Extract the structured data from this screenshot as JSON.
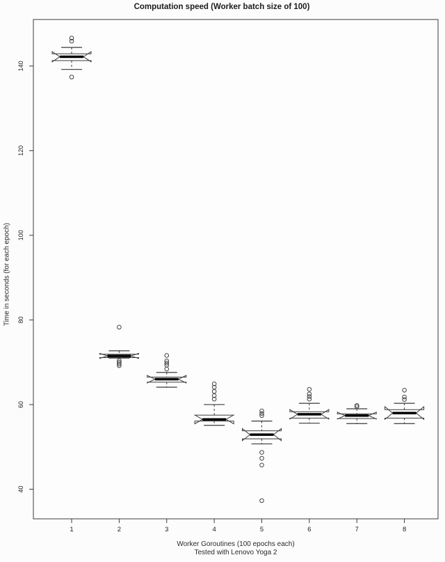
{
  "title": "Computation speed (Worker batch size of 100)",
  "x_axis": {
    "label_line1": "Worker Goroutines (100 epochs each)",
    "label_line2": "Tested with Lenovo Yoga 2",
    "ticks": [
      "1",
      "2",
      "3",
      "4",
      "5",
      "6",
      "7",
      "8"
    ]
  },
  "y_axis": {
    "label": "Time in seconds (for each epoch)",
    "ticks": [
      40,
      60,
      80,
      100,
      120,
      140
    ]
  },
  "colors": {
    "background": "#fcfcfc",
    "plot_background": "#fdfdfd",
    "stroke": "#3a3a3a",
    "median": "#000000",
    "box_fill": "#ffffff",
    "text": "#1c1c1c"
  },
  "chart_data": {
    "type": "boxplot",
    "notched": true,
    "title": "Computation speed (Worker batch size of 100)",
    "xlabel": "Worker Goroutines (100 epochs each) — Tested with Lenovo Yoga 2",
    "ylabel": "Time in seconds (for each epoch)",
    "categories": [
      1,
      2,
      3,
      4,
      5,
      6,
      7,
      8
    ],
    "ylim": [
      33,
      151
    ],
    "grid": false,
    "legend": false,
    "boxes": [
      {
        "x": 1,
        "low": 139.2,
        "q1": 141.3,
        "median": 142.2,
        "q3": 142.9,
        "high": 144.4,
        "outliers": [
          146.6,
          145.9,
          137.4
        ]
      },
      {
        "x": 2,
        "low": 71.0,
        "q1": 71.1,
        "median": 71.5,
        "q3": 71.9,
        "high": 72.7,
        "outliers": [
          78.3,
          70.4,
          70.0,
          69.6,
          69.2
        ]
      },
      {
        "x": 3,
        "low": 64.1,
        "q1": 65.3,
        "median": 66.0,
        "q3": 66.5,
        "high": 67.6,
        "outliers": [
          71.6,
          70.3,
          69.8,
          69.3,
          68.4
        ]
      },
      {
        "x": 4,
        "low": 55.1,
        "q1": 56.1,
        "median": 56.5,
        "q3": 57.5,
        "high": 60.0,
        "outliers": [
          64.9,
          64.1,
          63.1,
          62.1,
          61.3
        ]
      },
      {
        "x": 5,
        "low": 50.7,
        "q1": 51.9,
        "median": 52.9,
        "q3": 53.8,
        "high": 56.1,
        "outliers": [
          58.5,
          57.9,
          57.4,
          48.7,
          47.3,
          45.7,
          37.3
        ]
      },
      {
        "x": 6,
        "low": 55.6,
        "q1": 56.8,
        "median": 57.7,
        "q3": 58.3,
        "high": 60.3,
        "outliers": [
          63.6,
          62.5,
          61.9,
          61.3
        ]
      },
      {
        "x": 7,
        "low": 55.5,
        "q1": 56.7,
        "median": 57.4,
        "q3": 57.8,
        "high": 59.0,
        "outliers": [
          59.8,
          59.5
        ]
      },
      {
        "x": 8,
        "low": 55.5,
        "q1": 56.8,
        "median": 58.0,
        "q3": 58.8,
        "high": 60.3,
        "outliers": [
          63.4,
          61.8,
          61.2
        ]
      }
    ]
  }
}
